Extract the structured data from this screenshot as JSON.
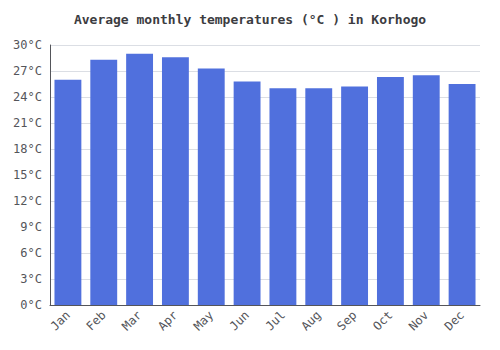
{
  "chart_data": {
    "type": "bar",
    "title": "Average monthly temperatures (°C ) in Korhogo",
    "categories": [
      "Jan",
      "Feb",
      "Mar",
      "Apr",
      "May",
      "Jun",
      "Jul",
      "Aug",
      "Sep",
      "Oct",
      "Nov",
      "Dec"
    ],
    "values": [
      26.0,
      28.3,
      29.0,
      28.6,
      27.3,
      25.8,
      25.0,
      25.0,
      25.2,
      26.3,
      26.5,
      25.5
    ],
    "ylim": [
      0,
      30
    ],
    "yticks": [
      {
        "value": 0,
        "label": "0°C"
      },
      {
        "value": 3,
        "label": "3°C"
      },
      {
        "value": 6,
        "label": "6°C"
      },
      {
        "value": 9,
        "label": "9°C"
      },
      {
        "value": 12,
        "label": "12°C"
      },
      {
        "value": 15,
        "label": "15°C"
      },
      {
        "value": 18,
        "label": "18°C"
      },
      {
        "value": 21,
        "label": "21°C"
      },
      {
        "value": 24,
        "label": "24°C"
      },
      {
        "value": 27,
        "label": "27°C"
      },
      {
        "value": 30,
        "label": "30°C"
      }
    ],
    "grid": true
  }
}
